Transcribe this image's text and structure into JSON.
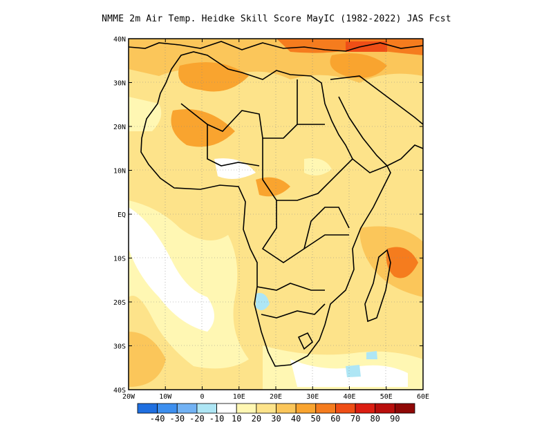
{
  "title": "NMME 2m Air Temp. Heidke Skill Score MayIC (1982-2022) JAS Fcst",
  "lon_ticks": [
    "20W",
    "10W",
    "0",
    "10E",
    "20E",
    "30E",
    "40E",
    "50E",
    "60E"
  ],
  "lat_ticks": [
    "40N",
    "30N",
    "20N",
    "10N",
    "EQ",
    "10S",
    "20S",
    "30S",
    "40S"
  ],
  "colorbar": {
    "labels": [
      "-40",
      "-30",
      "-20",
      "-10",
      "10",
      "20",
      "30",
      "40",
      "50",
      "60",
      "70",
      "80",
      "90"
    ],
    "colors": [
      "#1f6fe0",
      "#3d8fef",
      "#72b2f4",
      "#aee6f5",
      "#ffffff",
      "#fff7b3",
      "#fde38a",
      "#fbc65a",
      "#f9a42f",
      "#f57c1e",
      "#ef4e16",
      "#dc1e12",
      "#b90f0c",
      "#8f0806"
    ]
  },
  "chart_data": {
    "type": "heatmap",
    "title": "NMME 2m Air Temp. Heidke Skill Score MayIC (1982-2022) JAS Fcst",
    "lon_range": [
      -20,
      60
    ],
    "lat_range": [
      -40,
      40
    ],
    "grid": "dotted",
    "values_note_levels": [
      -40,
      -30,
      -20,
      -10,
      10,
      20,
      30,
      40,
      50,
      60,
      70,
      80,
      90
    ]
  }
}
